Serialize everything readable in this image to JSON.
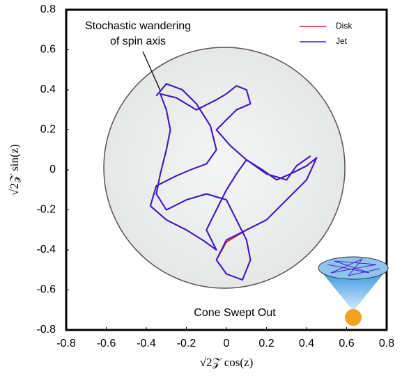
{
  "chart_data": {
    "type": "line",
    "xlabel": "√2𝒵 cos(z)",
    "ylabel": "√2𝒵 sin(z)",
    "annotations": [
      "Stochastic wandering",
      "of spin axis",
      "Cone Swept Out"
    ],
    "xlim": [
      -0.8,
      0.8
    ],
    "ylim": [
      -0.8,
      0.8
    ],
    "xticks": [
      -0.8,
      -0.6,
      -0.4,
      -0.2,
      0,
      0.2,
      0.4,
      0.6,
      0.8
    ],
    "yticks": [
      -0.8,
      -0.6,
      -0.4,
      -0.2,
      0,
      0.2,
      0.4,
      0.6,
      0.8
    ],
    "legend": "upper right",
    "x": [
      -0.35,
      -0.3,
      -0.22,
      -0.15,
      -0.08,
      -0.05,
      -0.1,
      -0.18,
      -0.25,
      -0.35,
      -0.38,
      -0.3,
      -0.2,
      -0.12,
      -0.05,
      -0.1,
      -0.05,
      0.0,
      0.05,
      0.1,
      0.18,
      0.25,
      0.32,
      0.4,
      0.45,
      0.4,
      0.3,
      0.2,
      0.1,
      0.0,
      -0.05,
      0.0,
      0.08,
      0.12,
      0.1,
      0.05,
      0.0,
      -0.1,
      -0.2,
      -0.3,
      -0.35,
      -0.33,
      -0.3,
      -0.28,
      -0.3,
      -0.33,
      -0.25,
      -0.15,
      -0.05,
      0.0,
      0.05,
      0.1,
      0.12,
      0.05,
      0.0,
      -0.05,
      0.02,
      0.1,
      0.2,
      0.3,
      0.35,
      0.42
    ],
    "series": [
      {
        "name": "Disk",
        "color": "#e02020",
        "values": [
          0.37,
          0.43,
          0.4,
          0.33,
          0.22,
          0.1,
          0.03,
          0.0,
          -0.03,
          -0.08,
          -0.18,
          -0.25,
          -0.3,
          -0.35,
          -0.4,
          -0.3,
          -0.2,
          -0.1,
          -0.02,
          0.05,
          0.0,
          -0.05,
          -0.02,
          0.02,
          0.06,
          -0.05,
          -0.15,
          -0.25,
          -0.3,
          -0.36,
          -0.45,
          -0.52,
          -0.55,
          -0.45,
          -0.35,
          -0.25,
          -0.15,
          -0.12,
          -0.15,
          -0.2,
          -0.12,
          -0.02,
          0.1,
          0.2,
          0.3,
          0.38,
          0.36,
          0.3,
          0.35,
          0.38,
          0.42,
          0.4,
          0.33,
          0.3,
          0.25,
          0.2,
          0.12,
          0.05,
          -0.02,
          -0.05,
          0.02,
          0.07
        ]
      },
      {
        "name": "Jet",
        "color": "#3a1acc",
        "values": [
          0.37,
          0.43,
          0.4,
          0.33,
          0.22,
          0.1,
          0.03,
          0.0,
          -0.03,
          -0.08,
          -0.18,
          -0.25,
          -0.3,
          -0.35,
          -0.4,
          -0.3,
          -0.2,
          -0.1,
          -0.02,
          0.05,
          0.0,
          -0.05,
          -0.02,
          0.02,
          0.06,
          -0.05,
          -0.15,
          -0.25,
          -0.3,
          -0.35,
          -0.45,
          -0.52,
          -0.55,
          -0.45,
          -0.35,
          -0.25,
          -0.15,
          -0.12,
          -0.15,
          -0.2,
          -0.12,
          -0.02,
          0.1,
          0.2,
          0.3,
          0.38,
          0.36,
          0.3,
          0.35,
          0.38,
          0.42,
          0.4,
          0.33,
          0.3,
          0.25,
          0.2,
          0.12,
          0.05,
          -0.02,
          -0.05,
          0.02,
          0.07
        ]
      }
    ]
  }
}
